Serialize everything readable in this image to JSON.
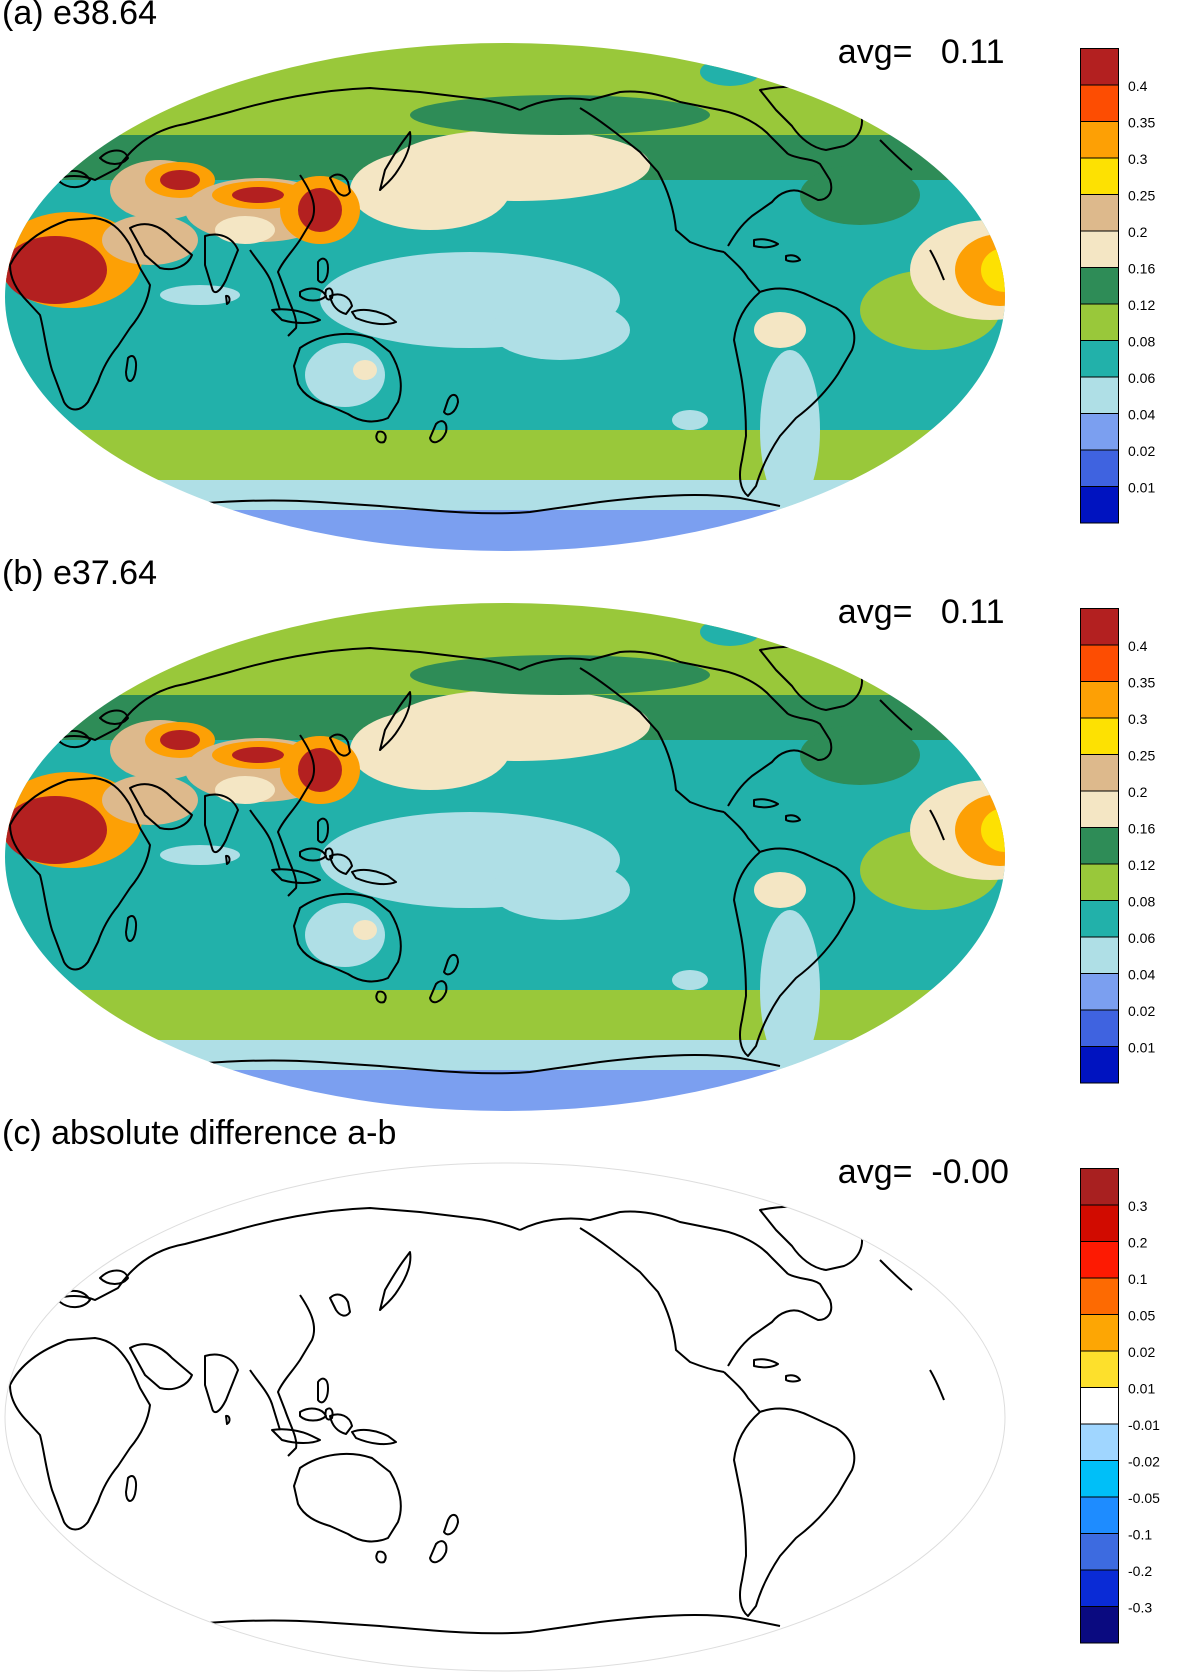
{
  "panels": [
    {
      "id": "a",
      "title": "(a) e38.64",
      "avg_label": "avg=",
      "avg_value": "0.11",
      "colorbar": {
        "colors": [
          "#0013c0",
          "#3f63e0",
          "#7b9ff0",
          "#afdfe6",
          "#22b1aa",
          "#99c83a",
          "#2e8c57",
          "#f4e6c4",
          "#ddb98c",
          "#fde102",
          "#fda005",
          "#fd4d02",
          "#b32020"
        ],
        "labels": [
          "0.01",
          "0.02",
          "0.04",
          "0.06",
          "0.08",
          "0.12",
          "0.16",
          "0.2",
          "0.25",
          "0.3",
          "0.35",
          "0.4"
        ]
      }
    },
    {
      "id": "b",
      "title": "(b) e37.64",
      "avg_label": "avg=",
      "avg_value": "0.11",
      "colorbar": {
        "colors": [
          "#0013c0",
          "#3f63e0",
          "#7b9ff0",
          "#afdfe6",
          "#22b1aa",
          "#99c83a",
          "#2e8c57",
          "#f4e6c4",
          "#ddb98c",
          "#fde102",
          "#fda005",
          "#fd4d02",
          "#b32020"
        ],
        "labels": [
          "0.01",
          "0.02",
          "0.04",
          "0.06",
          "0.08",
          "0.12",
          "0.16",
          "0.2",
          "0.25",
          "0.3",
          "0.35",
          "0.4"
        ]
      }
    },
    {
      "id": "c",
      "title": "(c) absolute difference a-b",
      "avg_label": "avg=",
      "avg_value": "-0.00",
      "colorbar": {
        "colors": [
          "#0a0a80",
          "#0a2bd6",
          "#3d6be0",
          "#1e8cff",
          "#00bff8",
          "#a0d6ff",
          "#ffffff",
          "#fde02c",
          "#fda604",
          "#fd6a02",
          "#fd1a02",
          "#d10b00",
          "#a82020"
        ],
        "labels": [
          "-0.3",
          "-0.2",
          "-0.1",
          "-0.05",
          "-0.02",
          "-0.01",
          "0.01",
          "0.02",
          "0.05",
          "0.1",
          "0.2",
          "0.3"
        ]
      }
    }
  ]
}
